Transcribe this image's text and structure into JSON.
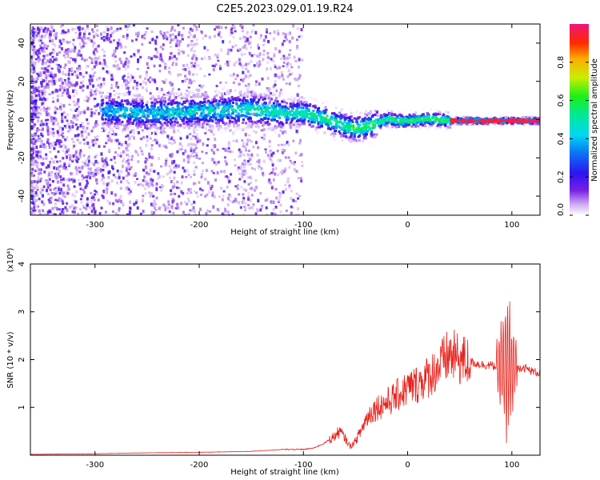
{
  "title": "C2E5.2023.029.01.19.R24",
  "chart_data": [
    {
      "type": "heatmap",
      "xlabel": "Height of straight line (km)",
      "ylabel": "Frequency (Hz)",
      "xlim": [
        -362,
        127
      ],
      "ylim": [
        -50,
        50
      ],
      "xticks": [
        -300,
        -200,
        -100,
        0,
        100
      ],
      "xtick_labels": [
        "-300",
        "-200",
        "-100",
        "0",
        "100"
      ],
      "yticks": [
        -40,
        -20,
        0,
        20,
        40
      ],
      "ytick_labels": [
        "-40",
        "-20",
        "0",
        "20",
        "40"
      ],
      "colorbar": {
        "label": "Normalized spectral amplitude",
        "range": [
          0,
          1
        ],
        "ticks": [
          0.0,
          0.2,
          0.4,
          0.6,
          0.8
        ],
        "tick_labels": [
          "0.0",
          "0.2",
          "0.4",
          "0.6",
          "0.8"
        ],
        "colormap": "rainbow (white-purple-blue-cyan-green-yellow-red-magenta)"
      },
      "ridge_frequency_hz": {
        "x": [
          -290,
          -250,
          -200,
          -150,
          -120,
          -100,
          -80,
          -60,
          -50,
          -40,
          -30,
          -20,
          -10,
          0,
          20,
          40,
          60,
          80,
          100,
          127
        ],
        "y": [
          5,
          4,
          5,
          6,
          4,
          4,
          1,
          -3,
          -4,
          -3,
          -1,
          1,
          0,
          0,
          1,
          0,
          0,
          0,
          0,
          0
        ]
      },
      "grid": false
    },
    {
      "type": "line",
      "xlabel": "Height of straight line (km)",
      "ylabel": "SNR (10 * v/v)",
      "y_multiplier": "(x10⁴)",
      "xlim": [
        -362,
        127
      ],
      "ylim": [
        0,
        4
      ],
      "xticks": [
        -300,
        -200,
        -100,
        0,
        100
      ],
      "xtick_labels": [
        "-300",
        "-200",
        "-100",
        "0",
        "100"
      ],
      "yticks": [
        1,
        2,
        3,
        4
      ],
      "ytick_labels": [
        "1",
        "2",
        "3",
        "4"
      ],
      "series": [
        {
          "color": "#e8221c",
          "x": [
            -362,
            -300,
            -250,
            -200,
            -150,
            -120,
            -100,
            -90,
            -80,
            -70,
            -65,
            -60,
            -55,
            -50,
            -45,
            -40,
            -35,
            -30,
            -20,
            -10,
            0,
            10,
            20,
            30,
            40,
            50,
            60,
            70,
            80,
            85,
            90,
            93,
            95,
            98,
            100,
            103,
            105,
            110,
            115,
            120,
            127
          ],
          "y": [
            0.02,
            0.03,
            0.05,
            0.06,
            0.08,
            0.12,
            0.12,
            0.15,
            0.25,
            0.4,
            0.5,
            0.35,
            0.18,
            0.3,
            0.5,
            0.75,
            0.9,
            1.0,
            1.1,
            1.25,
            1.4,
            1.5,
            1.65,
            1.85,
            2.1,
            2.0,
            1.95,
            1.9,
            1.88,
            1.85,
            1.9,
            2.0,
            1.8,
            2.1,
            1.7,
            2.0,
            1.8,
            1.85,
            1.8,
            1.75,
            1.72
          ]
        }
      ],
      "grid": false
    }
  ]
}
